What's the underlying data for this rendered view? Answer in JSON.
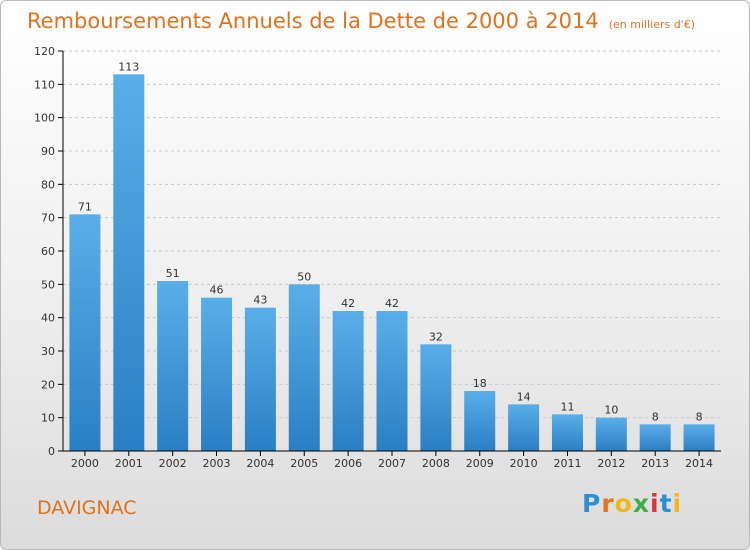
{
  "header": {
    "title": "Remboursements Annuels de la Dette de 2000 à 2014",
    "unit": "(en milliers d'€)"
  },
  "footer": {
    "commune": "DAVIGNAC",
    "brand": "Proxiti"
  },
  "colors": {
    "title": "#e2711d",
    "bar_light": "#5aaee8",
    "bar_dark": "#2a7fc4",
    "axis": "#000000",
    "grid": "#c8c8c8"
  },
  "chart_data": {
    "type": "bar",
    "categories": [
      "2000",
      "2001",
      "2002",
      "2003",
      "2004",
      "2005",
      "2006",
      "2007",
      "2008",
      "2009",
      "2010",
      "2011",
      "2012",
      "2013",
      "2014"
    ],
    "values": [
      71,
      113,
      51,
      46,
      43,
      50,
      42,
      42,
      32,
      18,
      14,
      11,
      10,
      8,
      8
    ],
    "ylim": [
      0,
      120
    ],
    "yticks": [
      0,
      10,
      20,
      30,
      40,
      50,
      60,
      70,
      80,
      90,
      100,
      110,
      120
    ],
    "grid": true,
    "data_labels": true
  }
}
